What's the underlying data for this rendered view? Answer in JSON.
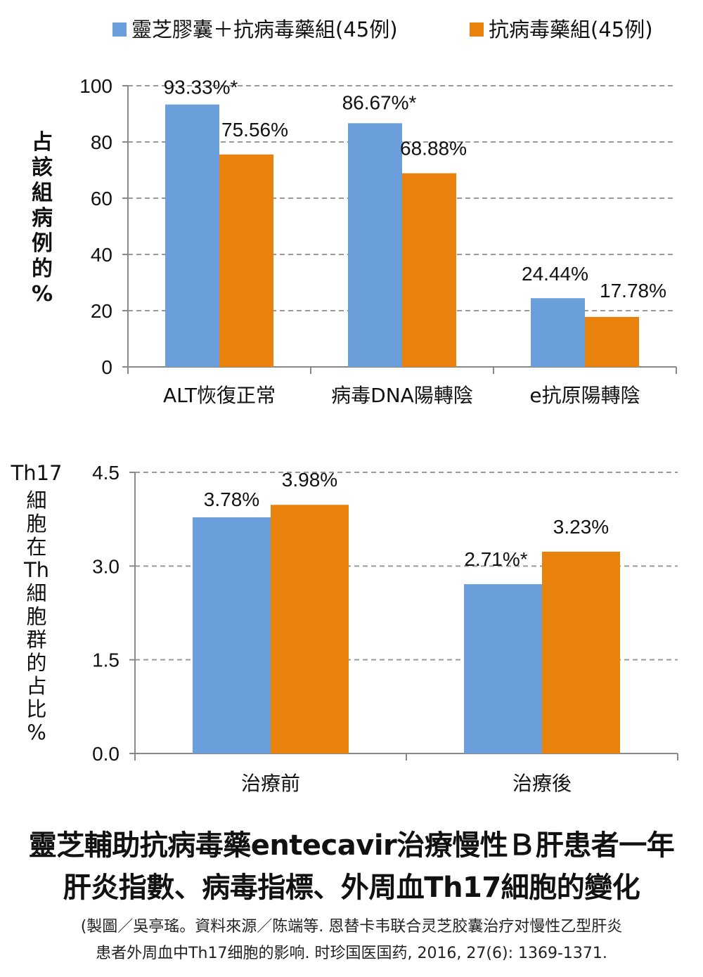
{
  "legend": [
    {
      "name": "靈芝膠囊＋抗病毒藥組(45例)",
      "color": "#6a9fdb"
    },
    {
      "name": "抗病毒藥組(45例)",
      "color": "#e8820c"
    }
  ],
  "chart_data": [
    {
      "type": "bar",
      "ylabel": "占該組病例的%",
      "ylim": [
        0,
        100
      ],
      "yticks": [
        "0",
        "20",
        "40",
        "60",
        "80",
        "100"
      ],
      "yticks_values": [
        0,
        20,
        40,
        60,
        80,
        100
      ],
      "grid": true,
      "categories": [
        "ALT恢復正常",
        "病毒DNA陽轉陰",
        "e抗原陽轉陰"
      ],
      "series": [
        {
          "name": "靈芝膠囊＋抗病毒藥組(45例)",
          "values": [
            93.33,
            86.67,
            24.44
          ],
          "labels": [
            "93.33%*",
            "86.67%*",
            "24.44%"
          ]
        },
        {
          "name": "抗病毒藥組(45例)",
          "values": [
            75.56,
            68.88,
            17.78
          ],
          "labels": [
            "75.56%",
            "68.88%",
            "17.78%"
          ]
        }
      ]
    },
    {
      "type": "bar",
      "ylabel_top": "Th17",
      "ylabel": "細胞在Th細胞群的占比%",
      "ylim": [
        0,
        4.5
      ],
      "yticks": [
        "0.0",
        "1.5",
        "3.0",
        "4.5"
      ],
      "yticks_values": [
        0,
        1.5,
        3.0,
        4.5
      ],
      "grid": true,
      "categories": [
        "治療前",
        "治療後"
      ],
      "series": [
        {
          "name": "靈芝膠囊＋抗病毒藥組(45例)",
          "values": [
            3.78,
            2.71
          ],
          "labels": [
            "3.78%",
            "2.71%*"
          ]
        },
        {
          "name": "抗病毒藥組(45例)",
          "values": [
            3.98,
            3.23
          ],
          "labels": [
            "3.98%",
            "3.23%"
          ]
        }
      ]
    }
  ],
  "title": {
    "line1": "靈芝輔助抗病毒藥entecavir治療慢性Ｂ肝患者一年",
    "line2": "肝炎指數、病毒指標、外周血Th17細胞的變化"
  },
  "source": {
    "line1": "(製圖／吳亭瑤。資料來源／陈端等. 恩替卡韦联合灵芝胶囊治疗对慢性乙型肝炎",
    "line2": "患者外周血中Th17细胞的影响. 时珍国医国药, 2016, 27(6): 1369-1371."
  }
}
